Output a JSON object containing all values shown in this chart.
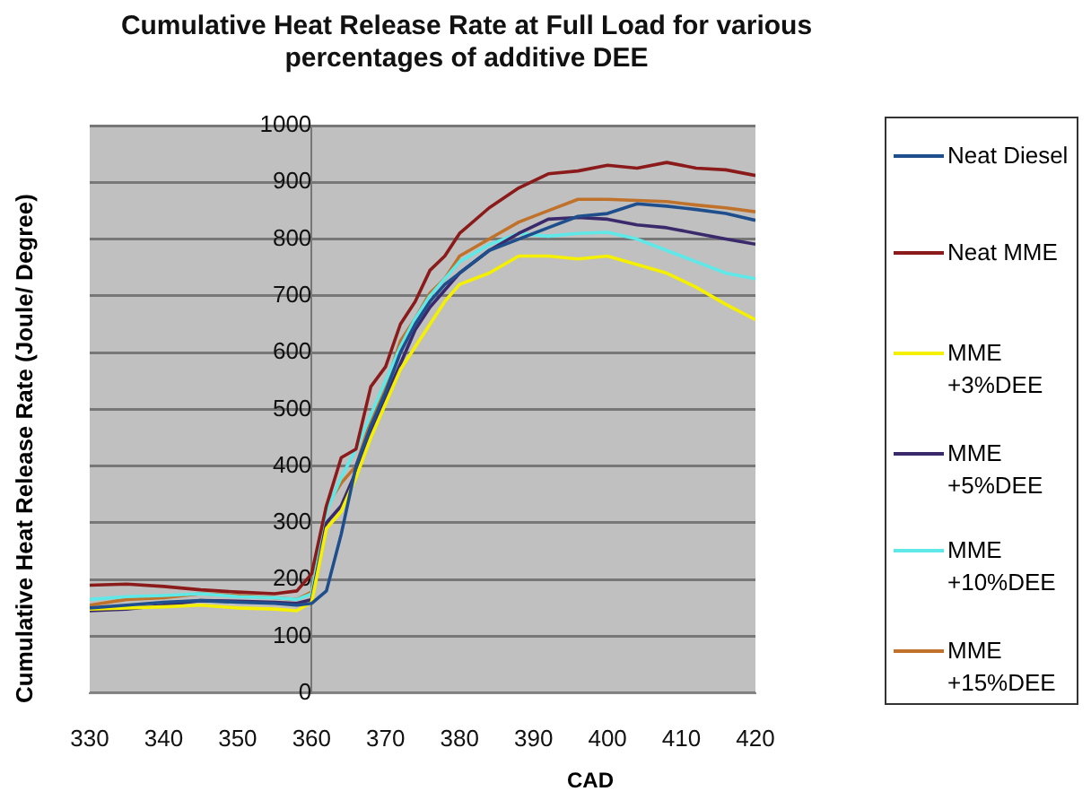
{
  "chart_data": {
    "type": "line",
    "title": "Cumulative Heat Release Rate at Full Load for various percentages  of additive DEE",
    "xlabel": "CAD",
    "ylabel": "Cumulative Heat Release Rate (Joule/ Degree)",
    "x": [
      330,
      335,
      340,
      345,
      350,
      355,
      358,
      360,
      362,
      364,
      366,
      368,
      370,
      372,
      374,
      376,
      378,
      380,
      384,
      388,
      392,
      396,
      400,
      404,
      408,
      412,
      416,
      420
    ],
    "series": [
      {
        "name": "Neat Diesel",
        "color": "#1f4e8c",
        "values": [
          150,
          155,
          160,
          163,
          160,
          158,
          155,
          158,
          180,
          280,
          400,
          470,
          530,
          600,
          650,
          690,
          720,
          740,
          780,
          800,
          820,
          840,
          845,
          862,
          858,
          852,
          845,
          833
        ]
      },
      {
        "name": "Neat MME",
        "color": "#8b1a1a",
        "values": [
          190,
          192,
          188,
          182,
          178,
          175,
          180,
          210,
          330,
          415,
          430,
          540,
          575,
          650,
          690,
          745,
          770,
          810,
          855,
          890,
          915,
          920,
          930,
          925,
          935,
          925,
          922,
          912
        ]
      },
      {
        "name": "MME +3%DEE",
        "color": "#f5f000",
        "values": [
          148,
          150,
          152,
          155,
          150,
          148,
          145,
          160,
          290,
          320,
          380,
          450,
          510,
          570,
          610,
          650,
          690,
          720,
          740,
          770,
          770,
          765,
          770,
          755,
          740,
          715,
          685,
          658
        ]
      },
      {
        "name": "MME +5%DEE",
        "color": "#3b2a6b",
        "values": [
          145,
          148,
          155,
          163,
          162,
          160,
          158,
          165,
          300,
          330,
          390,
          460,
          520,
          580,
          640,
          680,
          710,
          740,
          780,
          810,
          835,
          838,
          835,
          825,
          820,
          810,
          800,
          791
        ]
      },
      {
        "name": "MME +10%DEE",
        "color": "#5ee8e8",
        "values": [
          165,
          170,
          172,
          175,
          170,
          168,
          165,
          175,
          320,
          380,
          430,
          490,
          550,
          610,
          660,
          700,
          730,
          760,
          790,
          810,
          805,
          810,
          812,
          800,
          780,
          760,
          740,
          730
        ]
      },
      {
        "name": "MME +15%DEE",
        "color": "#c0722a",
        "values": [
          155,
          165,
          168,
          175,
          172,
          168,
          165,
          178,
          330,
          370,
          400,
          480,
          540,
          620,
          660,
          705,
          730,
          770,
          800,
          830,
          850,
          870,
          870,
          868,
          866,
          860,
          855,
          848
        ]
      }
    ],
    "xlim": [
      330,
      420
    ],
    "xticks": [
      330,
      340,
      350,
      360,
      370,
      380,
      390,
      400,
      410,
      420
    ],
    "ylim": [
      0,
      1000
    ],
    "yticks": [
      0,
      100,
      200,
      300,
      400,
      500,
      600,
      700,
      800,
      900,
      1000
    ],
    "grid": "y",
    "legend": "right",
    "marker": "none",
    "line_style": "solid"
  }
}
